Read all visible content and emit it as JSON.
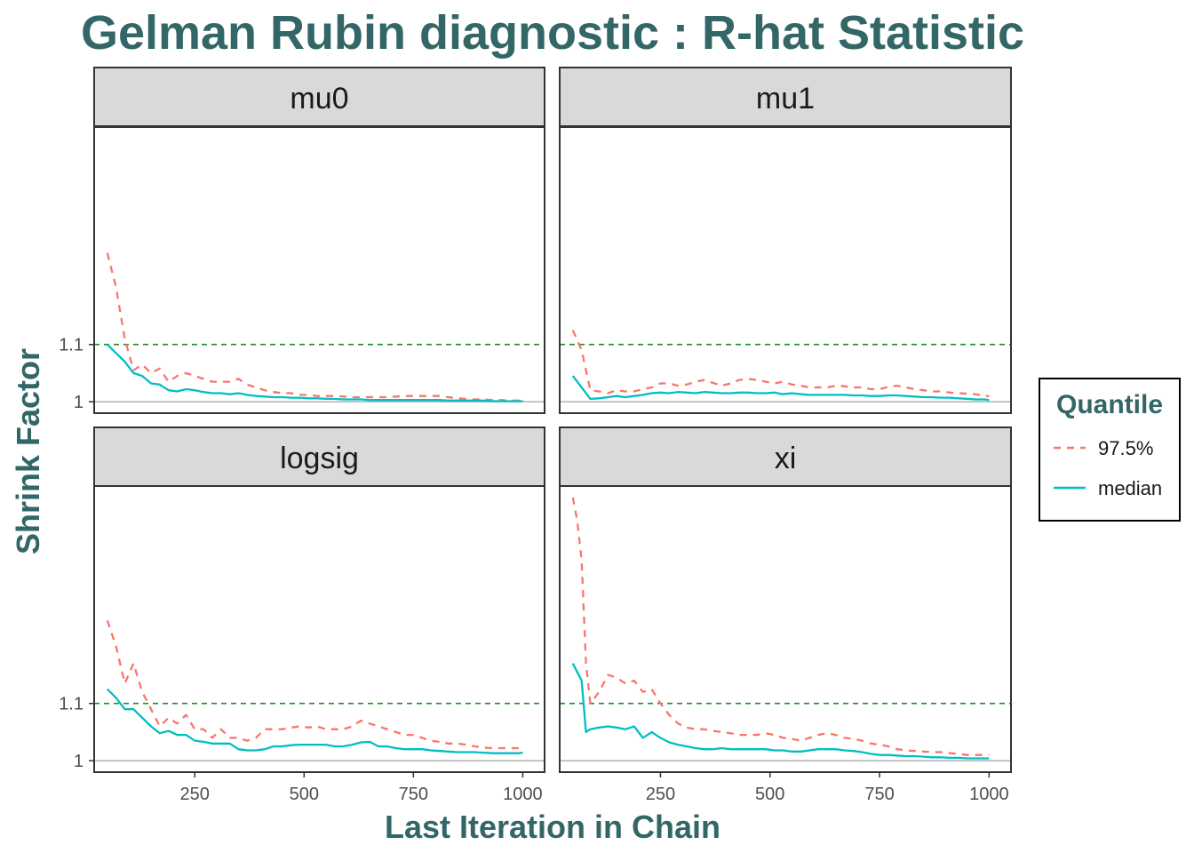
{
  "colors": {
    "title": "#336666",
    "series_975": "#f8766d",
    "series_median": "#00bfc4",
    "threshold": "#1f8f1f",
    "reference": "#a0a0a0",
    "strip_fill": "#d9d9d9",
    "panel_border": "#333333"
  },
  "legend": {
    "title": "Quantile",
    "items": [
      {
        "label": "97.5%",
        "color": "#f8766d",
        "dash": "dashed"
      },
      {
        "label": "median",
        "color": "#00bfc4",
        "dash": "solid"
      }
    ]
  },
  "chart_data": {
    "type": "line",
    "title": "Gelman Rubin diagnostic : R-hat Statistic",
    "xlabel": "Last Iteration in Chain",
    "ylabel": "Shrink Factor",
    "xlim": [
      20,
      1050
    ],
    "xticks": [
      250,
      500,
      750,
      1000
    ],
    "threshold_line": 1.1,
    "reference_line": 1,
    "grid": false,
    "legend_position": "right",
    "facets": [
      {
        "name": "mu0",
        "ylim": [
          0.98,
          1.48
        ],
        "yticks": [
          1,
          1.1
        ],
        "x": [
          50,
          70,
          90,
          110,
          130,
          150,
          170,
          190,
          210,
          230,
          250,
          270,
          290,
          310,
          330,
          350,
          370,
          390,
          410,
          430,
          450,
          470,
          490,
          510,
          530,
          550,
          570,
          590,
          610,
          630,
          650,
          670,
          690,
          710,
          730,
          750,
          770,
          790,
          810,
          830,
          850,
          870,
          890,
          910,
          930,
          950,
          970,
          990,
          1000
        ],
        "series": [
          {
            "name": "97.5%",
            "values": [
              1.26,
              1.2,
              1.11,
              1.055,
              1.065,
              1.05,
              1.058,
              1.035,
              1.045,
              1.05,
              1.045,
              1.04,
              1.035,
              1.035,
              1.035,
              1.04,
              1.03,
              1.025,
              1.02,
              1.017,
              1.015,
              1.015,
              1.012,
              1.012,
              1.01,
              1.01,
              1.01,
              1.009,
              1.008,
              1.008,
              1.008,
              1.008,
              1.008,
              1.009,
              1.01,
              1.01,
              1.01,
              1.01,
              1.01,
              1.008,
              1.006,
              1.005,
              1.004,
              1.004,
              1.003,
              1.003,
              1.002,
              1.002,
              1.002
            ]
          },
          {
            "name": "median",
            "values": [
              1.1,
              1.085,
              1.07,
              1.05,
              1.045,
              1.032,
              1.03,
              1.02,
              1.018,
              1.022,
              1.02,
              1.017,
              1.015,
              1.015,
              1.013,
              1.015,
              1.012,
              1.01,
              1.009,
              1.008,
              1.008,
              1.007,
              1.007,
              1.006,
              1.006,
              1.005,
              1.005,
              1.004,
              1.004,
              1.004,
              1.003,
              1.003,
              1.003,
              1.003,
              1.003,
              1.003,
              1.003,
              1.003,
              1.003,
              1.002,
              1.002,
              1.002,
              1.002,
              1.002,
              1.001,
              1.001,
              1.001,
              1.001,
              1.001
            ]
          }
        ]
      },
      {
        "name": "mu1",
        "ylim": [
          0.98,
          1.48
        ],
        "yticks": [
          1,
          1.1
        ],
        "x": [
          50,
          70,
          90,
          110,
          130,
          150,
          170,
          190,
          210,
          230,
          250,
          270,
          290,
          310,
          330,
          350,
          370,
          390,
          410,
          430,
          450,
          470,
          490,
          510,
          530,
          550,
          570,
          590,
          610,
          630,
          650,
          670,
          690,
          710,
          730,
          750,
          770,
          790,
          810,
          830,
          850,
          870,
          890,
          910,
          930,
          950,
          970,
          990,
          1000
        ],
        "series": [
          {
            "name": "97.5%",
            "values": [
              1.125,
              1.09,
              1.02,
              1.018,
              1.015,
              1.02,
              1.018,
              1.018,
              1.022,
              1.025,
              1.032,
              1.032,
              1.028,
              1.03,
              1.035,
              1.038,
              1.033,
              1.028,
              1.032,
              1.038,
              1.04,
              1.038,
              1.035,
              1.032,
              1.035,
              1.03,
              1.028,
              1.025,
              1.025,
              1.025,
              1.028,
              1.027,
              1.025,
              1.025,
              1.022,
              1.022,
              1.026,
              1.028,
              1.025,
              1.022,
              1.02,
              1.018,
              1.018,
              1.016,
              1.015,
              1.014,
              1.013,
              1.01,
              1.01
            ]
          },
          {
            "name": "median",
            "values": [
              1.045,
              1.025,
              1.005,
              1.006,
              1.008,
              1.01,
              1.008,
              1.01,
              1.012,
              1.015,
              1.016,
              1.015,
              1.017,
              1.016,
              1.015,
              1.017,
              1.016,
              1.015,
              1.015,
              1.016,
              1.016,
              1.015,
              1.015,
              1.016,
              1.013,
              1.015,
              1.013,
              1.012,
              1.012,
              1.012,
              1.012,
              1.012,
              1.011,
              1.011,
              1.01,
              1.01,
              1.011,
              1.011,
              1.01,
              1.009,
              1.008,
              1.008,
              1.007,
              1.007,
              1.006,
              1.005,
              1.004,
              1.004,
              1.003
            ]
          }
        ]
      },
      {
        "name": "logsig",
        "ylim": [
          0.98,
          1.48
        ],
        "yticks": [
          1,
          1.1
        ],
        "x": [
          50,
          70,
          90,
          110,
          130,
          150,
          170,
          190,
          210,
          230,
          250,
          270,
          290,
          310,
          330,
          350,
          370,
          390,
          410,
          430,
          450,
          470,
          490,
          510,
          530,
          550,
          570,
          590,
          610,
          630,
          650,
          670,
          690,
          710,
          730,
          750,
          770,
          790,
          810,
          830,
          850,
          870,
          890,
          910,
          930,
          950,
          970,
          990,
          1000
        ],
        "series": [
          {
            "name": "97.5%",
            "values": [
              1.245,
              1.2,
              1.135,
              1.17,
              1.12,
              1.09,
              1.06,
              1.075,
              1.065,
              1.08,
              1.055,
              1.055,
              1.04,
              1.055,
              1.04,
              1.04,
              1.035,
              1.04,
              1.055,
              1.055,
              1.055,
              1.058,
              1.06,
              1.058,
              1.06,
              1.055,
              1.055,
              1.055,
              1.06,
              1.07,
              1.065,
              1.06,
              1.055,
              1.05,
              1.045,
              1.045,
              1.04,
              1.035,
              1.033,
              1.03,
              1.03,
              1.028,
              1.025,
              1.023,
              1.022,
              1.022,
              1.022,
              1.022,
              1.023
            ]
          },
          {
            "name": "median",
            "values": [
              1.125,
              1.11,
              1.09,
              1.09,
              1.075,
              1.06,
              1.048,
              1.052,
              1.045,
              1.045,
              1.035,
              1.033,
              1.03,
              1.03,
              1.03,
              1.02,
              1.018,
              1.018,
              1.02,
              1.025,
              1.025,
              1.027,
              1.028,
              1.028,
              1.028,
              1.028,
              1.025,
              1.025,
              1.028,
              1.032,
              1.033,
              1.025,
              1.025,
              1.022,
              1.02,
              1.02,
              1.02,
              1.018,
              1.017,
              1.016,
              1.015,
              1.015,
              1.015,
              1.014,
              1.013,
              1.013,
              1.013,
              1.013,
              1.014
            ]
          }
        ]
      },
      {
        "name": "xi",
        "ylim": [
          0.98,
          1.48
        ],
        "yticks": [
          1,
          1.1
        ],
        "x": [
          50,
          60,
          70,
          80,
          90,
          110,
          130,
          150,
          170,
          190,
          210,
          230,
          250,
          270,
          290,
          310,
          330,
          350,
          370,
          390,
          410,
          430,
          450,
          470,
          490,
          510,
          530,
          550,
          570,
          590,
          610,
          630,
          650,
          670,
          690,
          710,
          730,
          750,
          770,
          790,
          810,
          830,
          850,
          870,
          890,
          910,
          930,
          950,
          970,
          990,
          1000
        ],
        "series": [
          {
            "name": "97.5%",
            "values": [
              1.46,
              1.42,
              1.35,
              1.17,
              1.1,
              1.12,
              1.15,
              1.145,
              1.135,
              1.14,
              1.12,
              1.125,
              1.1,
              1.08,
              1.065,
              1.058,
              1.055,
              1.055,
              1.052,
              1.05,
              1.048,
              1.045,
              1.045,
              1.045,
              1.048,
              1.045,
              1.04,
              1.038,
              1.035,
              1.04,
              1.045,
              1.048,
              1.045,
              1.04,
              1.038,
              1.035,
              1.03,
              1.028,
              1.025,
              1.02,
              1.018,
              1.017,
              1.016,
              1.015,
              1.015,
              1.013,
              1.012,
              1.01,
              1.01,
              1.01,
              1.01
            ]
          },
          {
            "name": "median",
            "values": [
              1.17,
              1.155,
              1.14,
              1.05,
              1.055,
              1.058,
              1.06,
              1.058,
              1.055,
              1.06,
              1.04,
              1.05,
              1.04,
              1.032,
              1.028,
              1.025,
              1.022,
              1.02,
              1.02,
              1.022,
              1.02,
              1.02,
              1.02,
              1.02,
              1.02,
              1.018,
              1.018,
              1.016,
              1.016,
              1.018,
              1.02,
              1.02,
              1.02,
              1.018,
              1.017,
              1.015,
              1.012,
              1.01,
              1.01,
              1.009,
              1.008,
              1.008,
              1.007,
              1.006,
              1.006,
              1.005,
              1.005,
              1.004,
              1.004,
              1.004,
              1.004
            ]
          }
        ]
      }
    ]
  }
}
